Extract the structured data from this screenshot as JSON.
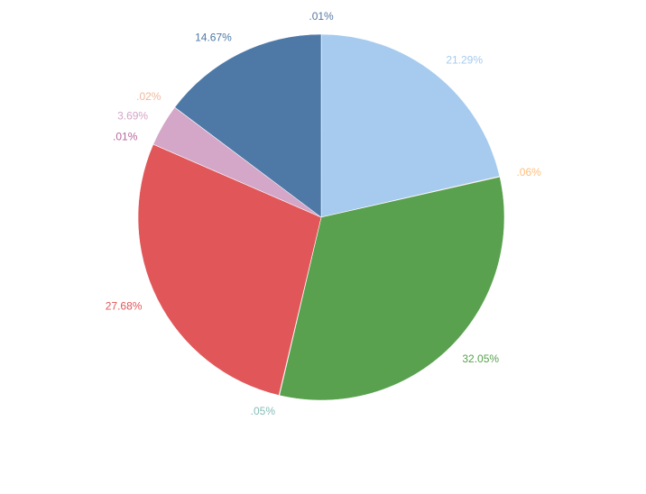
{
  "chart_data": {
    "type": "pie",
    "values": [
      0.01,
      21.29,
      0.06,
      32.05,
      0.05,
      27.68,
      0.01,
      3.69,
      0.02,
      14.67
    ],
    "value_labels": [
      ".01%",
      "21.29%",
      ".06%",
      "32.05%",
      ".05%",
      "27.68%",
      ".01%",
      "3.69%",
      ".02%",
      "14.67%"
    ],
    "colors": [
      "#5778a4",
      "#a6cbee",
      "#ffbe7d",
      "#59a14f",
      "#86bcb6",
      "#e15759",
      "#b6689b",
      "#d4a6c8",
      "#f0b89c",
      "#4e79a7"
    ]
  }
}
